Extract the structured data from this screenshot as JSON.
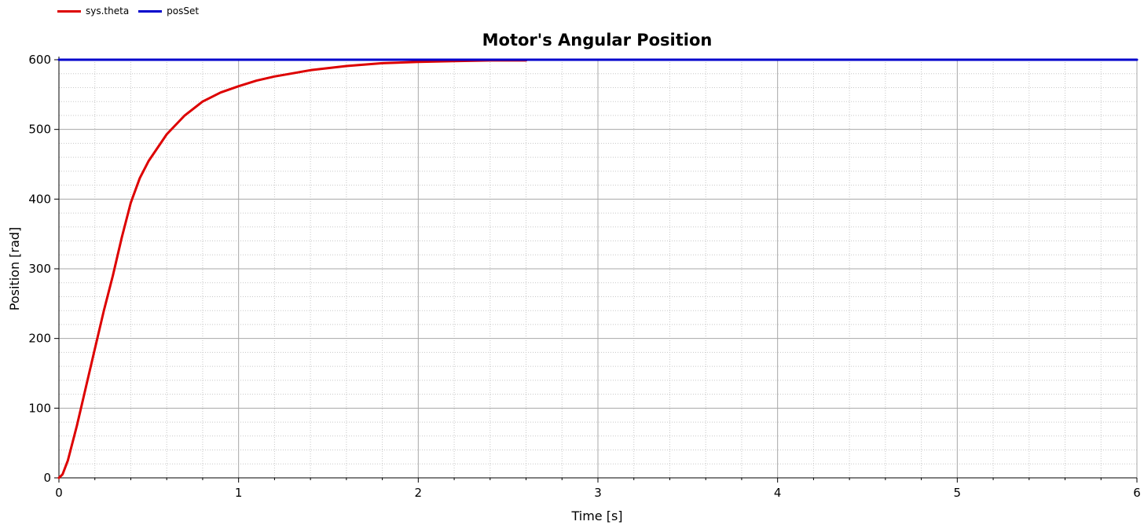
{
  "chart_data": {
    "type": "line",
    "title": "Motor's Angular Position",
    "xlabel": "Time [s]",
    "ylabel": "Position [rad]",
    "xlim": [
      0,
      6
    ],
    "ylim": [
      0,
      600
    ],
    "xticks": [
      "0",
      "1",
      "2",
      "3",
      "4",
      "5",
      "6"
    ],
    "yticks": [
      "0",
      "100",
      "200",
      "300",
      "400",
      "500",
      "600"
    ],
    "grid": true,
    "legend_position": "top-left",
    "series": [
      {
        "name": "sys.theta",
        "color": "#dd0000",
        "x": [
          0,
          0.02,
          0.05,
          0.1,
          0.15,
          0.2,
          0.25,
          0.3,
          0.35,
          0.4,
          0.45,
          0.5,
          0.6,
          0.7,
          0.8,
          0.9,
          1.0,
          1.1,
          1.2,
          1.4,
          1.6,
          1.8,
          2.0,
          2.2,
          2.4,
          2.6
        ],
        "y": [
          0,
          5,
          25,
          75,
          130,
          185,
          240,
          290,
          345,
          395,
          430,
          455,
          493,
          520,
          540,
          553,
          562,
          570,
          576,
          585,
          591,
          595,
          597,
          598,
          599,
          599
        ]
      },
      {
        "name": "posSet",
        "color": "#0000cc",
        "x": [
          0,
          6
        ],
        "y": [
          600,
          600
        ]
      }
    ]
  }
}
